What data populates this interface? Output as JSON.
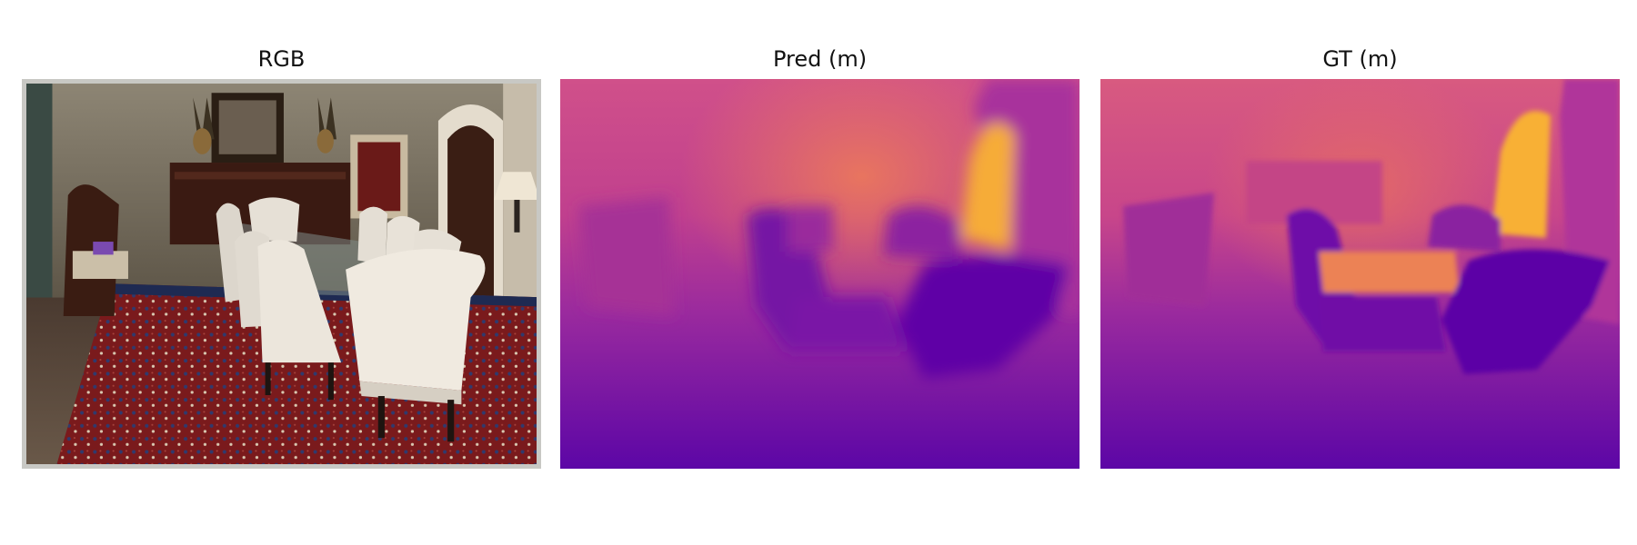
{
  "panels": [
    {
      "title": "RGB"
    },
    {
      "title": "Pred (m)"
    },
    {
      "title": "GT (m)"
    }
  ],
  "colormap": {
    "near": "#5a05a6",
    "mid": "#b02f9c",
    "far": "#e8745c",
    "farthest": "#f7b331"
  }
}
